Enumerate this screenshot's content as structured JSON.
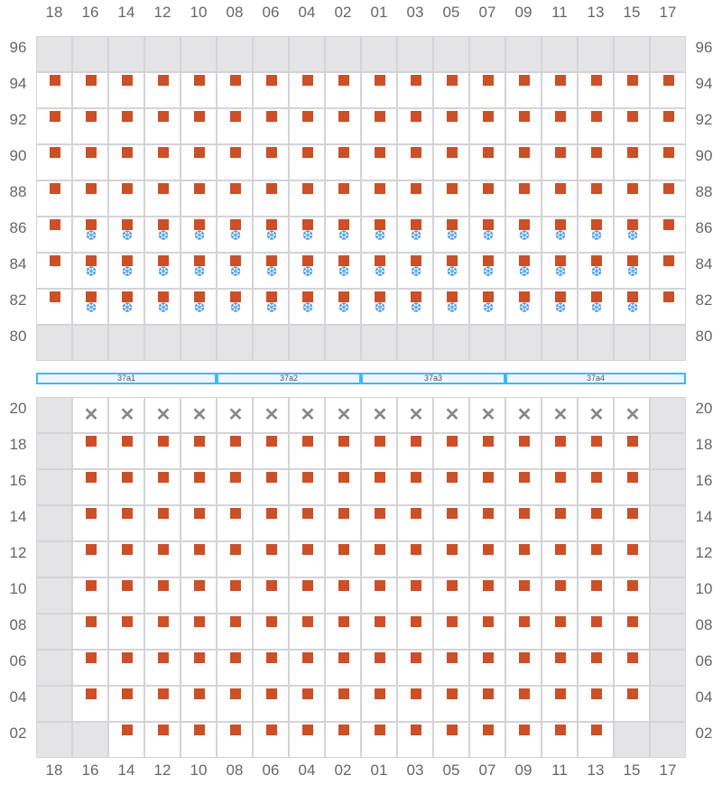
{
  "columns": [
    "18",
    "16",
    "14",
    "12",
    "10",
    "08",
    "06",
    "04",
    "02",
    "01",
    "03",
    "05",
    "07",
    "09",
    "11",
    "13",
    "15",
    "17"
  ],
  "top_block": {
    "rows": [
      "96",
      "94",
      "92",
      "90",
      "88",
      "86",
      "84",
      "82",
      "80"
    ],
    "cells": [
      "g g g g g g g g g g g g g g g g g g",
      "s s s s s s s s s s s s s s s s s s",
      "s s s s s s s s s s s s s s s s s s",
      "s s s s s s s s s s s s s s s s s s",
      "s s s s s s s s s s s s s s s s s s",
      "s sf sf sf sf sf sf sf sf sf sf sf sf sf sf sf sf s",
      "s sf sf sf sf sf sf sf sf sf sf sf sf sf sf sf sf s",
      "s sf sf sf sf sf sf sf sf sf sf sf sf sf sf sf sf s",
      "g g g g g g g g g g g g g g g g g g"
    ]
  },
  "segments": [
    {
      "label": "37a1",
      "span": 5
    },
    {
      "label": "37a2",
      "span": 4
    },
    {
      "label": "37a3",
      "span": 4
    },
    {
      "label": "37a4",
      "span": 5
    }
  ],
  "bottom_block": {
    "rows": [
      "20",
      "18",
      "16",
      "14",
      "12",
      "10",
      "08",
      "06",
      "04",
      "02"
    ],
    "cells": [
      "g x x x x x x x x x x x x x x x x g",
      "g s s s s s s s s s s s s s s s s g",
      "g s s s s s s s s s s s s s s s s g",
      "g s s s s s s s s s s s s s s s s g",
      "g s s s s s s s s s s s s s s s s g",
      "g s s s s s s s s s s s s s s s s g",
      "g s s s s s s s s s s s s s s s s g",
      "g s s s s s s s s s s s s s s s s g",
      "g s s s s s s s s s s s s s s s s g",
      "g g s s s s s s s s s s s s s s g g"
    ]
  },
  "legend_icons": {
    "s": "square-marker-icon",
    "sf": "snowflake-icon",
    "x": "x-mark-icon"
  },
  "colors": {
    "marker": "#cc4f27",
    "snowflake": "#4a9be0",
    "blocked": "#e4e4e7",
    "segment_border": "#38bdf8"
  }
}
